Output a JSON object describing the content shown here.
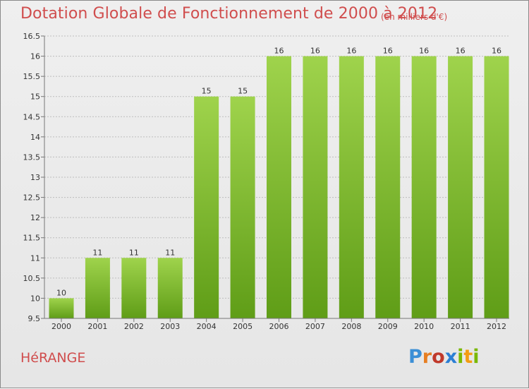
{
  "header": {
    "title": "Dotation Globale de Fonctionnement de 2000 à 2012",
    "subtitle": "(en milliers d'€)"
  },
  "footer": {
    "city": "HéRANGE",
    "logo_text": "Proxiti",
    "logo_letters": [
      {
        "char": "P",
        "color": "#3b8fd6"
      },
      {
        "char": "r",
        "color": "#e67e22"
      },
      {
        "char": "o",
        "color": "#c0392b"
      },
      {
        "char": "x",
        "color": "#2c7fd4"
      },
      {
        "char": "i",
        "color": "#7ab800"
      },
      {
        "char": "t",
        "color": "#f39c12"
      },
      {
        "char": "i",
        "color": "#7ab800"
      }
    ]
  },
  "colors": {
    "title": "#d04d4d",
    "bar_top": "#9fd34c",
    "bar_bottom": "#5f9d17",
    "grid": "#bdbdbd",
    "axis_text": "#333333"
  },
  "chart_data": {
    "type": "bar",
    "title": "Dotation Globale de Fonctionnement de 2000 à 2012",
    "subtitle": "(en milliers d'€)",
    "xlabel": "",
    "ylabel": "",
    "categories": [
      "2000",
      "2001",
      "2002",
      "2003",
      "2004",
      "2005",
      "2006",
      "2007",
      "2008",
      "2009",
      "2010",
      "2011",
      "2012"
    ],
    "values": [
      10,
      11,
      11,
      11,
      15,
      15,
      16,
      16,
      16,
      16,
      16,
      16,
      16
    ],
    "data_labels": [
      "10",
      "11",
      "11",
      "11",
      "15",
      "15",
      "16",
      "16",
      "16",
      "16",
      "16",
      "16",
      "16"
    ],
    "ylim": [
      9.5,
      16.5
    ],
    "yticks": [
      9.5,
      10,
      10.5,
      11,
      11.5,
      12,
      12.5,
      13,
      13.5,
      14,
      14.5,
      15,
      15.5,
      16,
      16.5
    ],
    "ytick_labels": [
      "9.5",
      "10",
      "10.5",
      "11",
      "11.5",
      "12",
      "12.5",
      "13",
      "13.5",
      "14",
      "14.5",
      "15",
      "15.5",
      "16",
      "16.5"
    ],
    "grid": true,
    "legend": "none"
  }
}
